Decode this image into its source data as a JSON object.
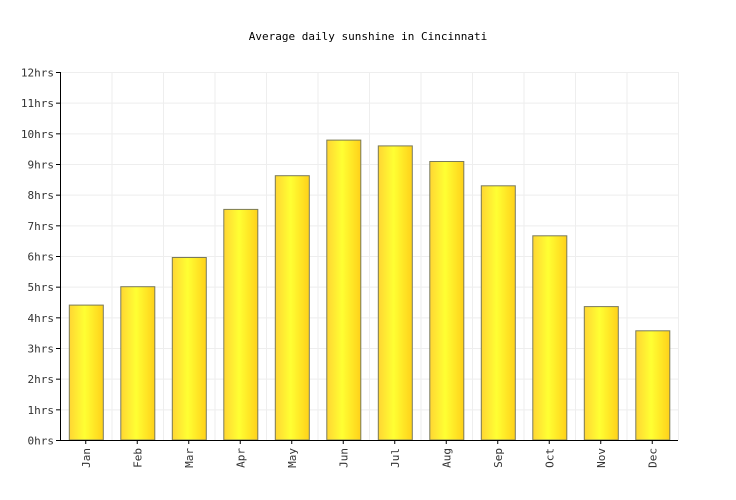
{
  "chart_data": {
    "type": "bar",
    "title": "Average daily sunshine in Cincinnati",
    "categories": [
      "Jan",
      "Feb",
      "Mar",
      "Apr",
      "May",
      "Jun",
      "Jul",
      "Aug",
      "Sep",
      "Oct",
      "Nov",
      "Dec"
    ],
    "values": [
      4.4,
      5.0,
      5.95,
      7.52,
      8.62,
      9.78,
      9.59,
      9.08,
      8.29,
      6.66,
      4.35,
      3.56
    ],
    "y_ticks": [
      "0hrs",
      "1hrs",
      "2hrs",
      "3hrs",
      "4hrs",
      "5hrs",
      "6hrs",
      "7hrs",
      "8hrs",
      "9hrs",
      "10hrs",
      "11hrs",
      "12hrs"
    ],
    "ylim": [
      0,
      12
    ],
    "grid": true,
    "legend": "none",
    "bar_color_start": "#ffd633",
    "bar_color_mid": "#ffff33",
    "bar_color_end": "#ffd11a",
    "bar_outline": "#7a7a5a",
    "grid_color": "#eeeeee",
    "axis_color": "#000000"
  }
}
